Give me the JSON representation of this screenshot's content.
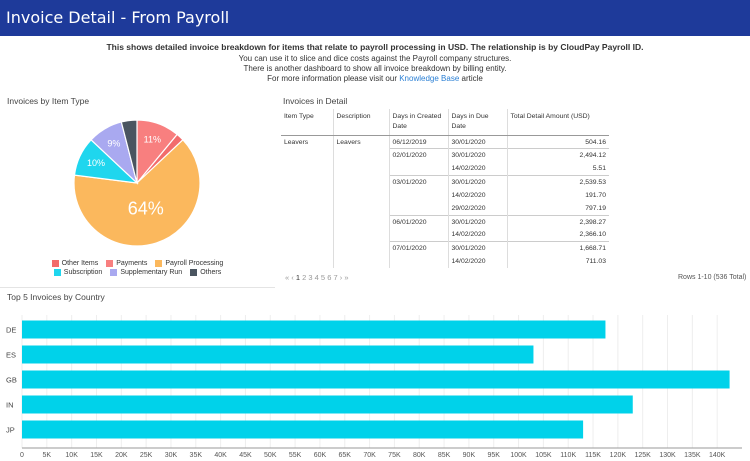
{
  "header": {
    "title": "Invoice Detail - From Payroll"
  },
  "intro": {
    "line1": "This shows detailed invoice breakdown for items that relate to payroll processing in USD. The relationship is by CloudPay Payroll ID.",
    "line2": "You can use it to slice and dice costs against the Payroll company structures.",
    "line3": "There is another dashboard to show all invoice breakdown by billing entity.",
    "line4_prefix": "For more information please visit our ",
    "link_text": "Knowledge Base",
    "line4_suffix": " article"
  },
  "pie_panel": {
    "title": "Invoices by Item Type",
    "chart_data": {
      "type": "pie",
      "slices": [
        {
          "name": "Payments",
          "value": 11,
          "label": "11%",
          "color": "#f87f7f"
        },
        {
          "name": "Other Items",
          "value": 2,
          "label": "",
          "color": "#f26c6c"
        },
        {
          "name": "Payroll Processing",
          "value": 64,
          "label": "64%",
          "color": "#fbb85d"
        },
        {
          "name": "Subscription",
          "value": 10,
          "label": "10%",
          "color": "#1fd6ee"
        },
        {
          "name": "Supplementary Run",
          "value": 9,
          "label": "9%",
          "color": "#a9a9f0"
        },
        {
          "name": "Others",
          "value": 4,
          "label": "",
          "color": "#4a5560"
        }
      ],
      "legend_rows": [
        [
          {
            "name": "Other Items",
            "color": "#f26c6c"
          },
          {
            "name": "Payments",
            "color": "#f87f7f"
          },
          {
            "name": "Payroll Processing",
            "color": "#fbb85d"
          }
        ],
        [
          {
            "name": "Subscription",
            "color": "#1fd6ee"
          },
          {
            "name": "Supplementary Run",
            "color": "#a9a9f0"
          },
          {
            "name": "Others",
            "color": "#4a5560"
          }
        ]
      ]
    }
  },
  "detail_panel": {
    "title": "Invoices in Detail",
    "columns": [
      "Item Type",
      "Description",
      "Days in Created Date",
      "Days in Due Date",
      "Total Detail Amount (USD)"
    ],
    "rows": [
      [
        "Leavers",
        "Leavers",
        "06/12/2019",
        "30/01/2020",
        "504.16"
      ],
      [
        "",
        "",
        "02/01/2020",
        "30/01/2020",
        "2,494.12"
      ],
      [
        "",
        "",
        "",
        "14/02/2020",
        "5.51"
      ],
      [
        "",
        "",
        "03/01/2020",
        "30/01/2020",
        "2,539.53"
      ],
      [
        "",
        "",
        "",
        "14/02/2020",
        "191.70"
      ],
      [
        "",
        "",
        "",
        "29/02/2020",
        "797.19"
      ],
      [
        "",
        "",
        "06/01/2020",
        "30/01/2020",
        "2,398.27"
      ],
      [
        "",
        "",
        "",
        "14/02/2020",
        "2,366.10"
      ],
      [
        "",
        "",
        "07/01/2020",
        "30/01/2020",
        "1,668.71"
      ],
      [
        "",
        "",
        "",
        "14/02/2020",
        "711.03"
      ]
    ],
    "pager": {
      "first": "«",
      "prev": "‹",
      "pages": [
        "1",
        "2",
        "3",
        "4",
        "5",
        "6",
        "7"
      ],
      "current": "1",
      "next": "›",
      "last": "»"
    },
    "rows_info": "Rows 1-10 (536 Total)"
  },
  "bar_panel": {
    "title": "Top 5 Invoices by Country",
    "chart_data": {
      "type": "bar",
      "orientation": "horizontal",
      "categories": [
        "DE",
        "ES",
        "GB",
        "IN",
        "JP"
      ],
      "series": [
        {
          "values": [
            117500,
            103000,
            142500,
            123000,
            113000
          ]
        }
      ],
      "xlim": [
        0,
        145000
      ],
      "xticks": [
        "0",
        "5K",
        "10K",
        "15K",
        "20K",
        "25K",
        "30K",
        "35K",
        "40K",
        "45K",
        "50K",
        "55K",
        "60K",
        "65K",
        "70K",
        "75K",
        "80K",
        "85K",
        "90K",
        "95K",
        "100K",
        "105K",
        "110K",
        "115K",
        "120K",
        "125K",
        "130K",
        "135K",
        "140K"
      ],
      "grid": true,
      "bar_color": "#00d2ea"
    }
  }
}
